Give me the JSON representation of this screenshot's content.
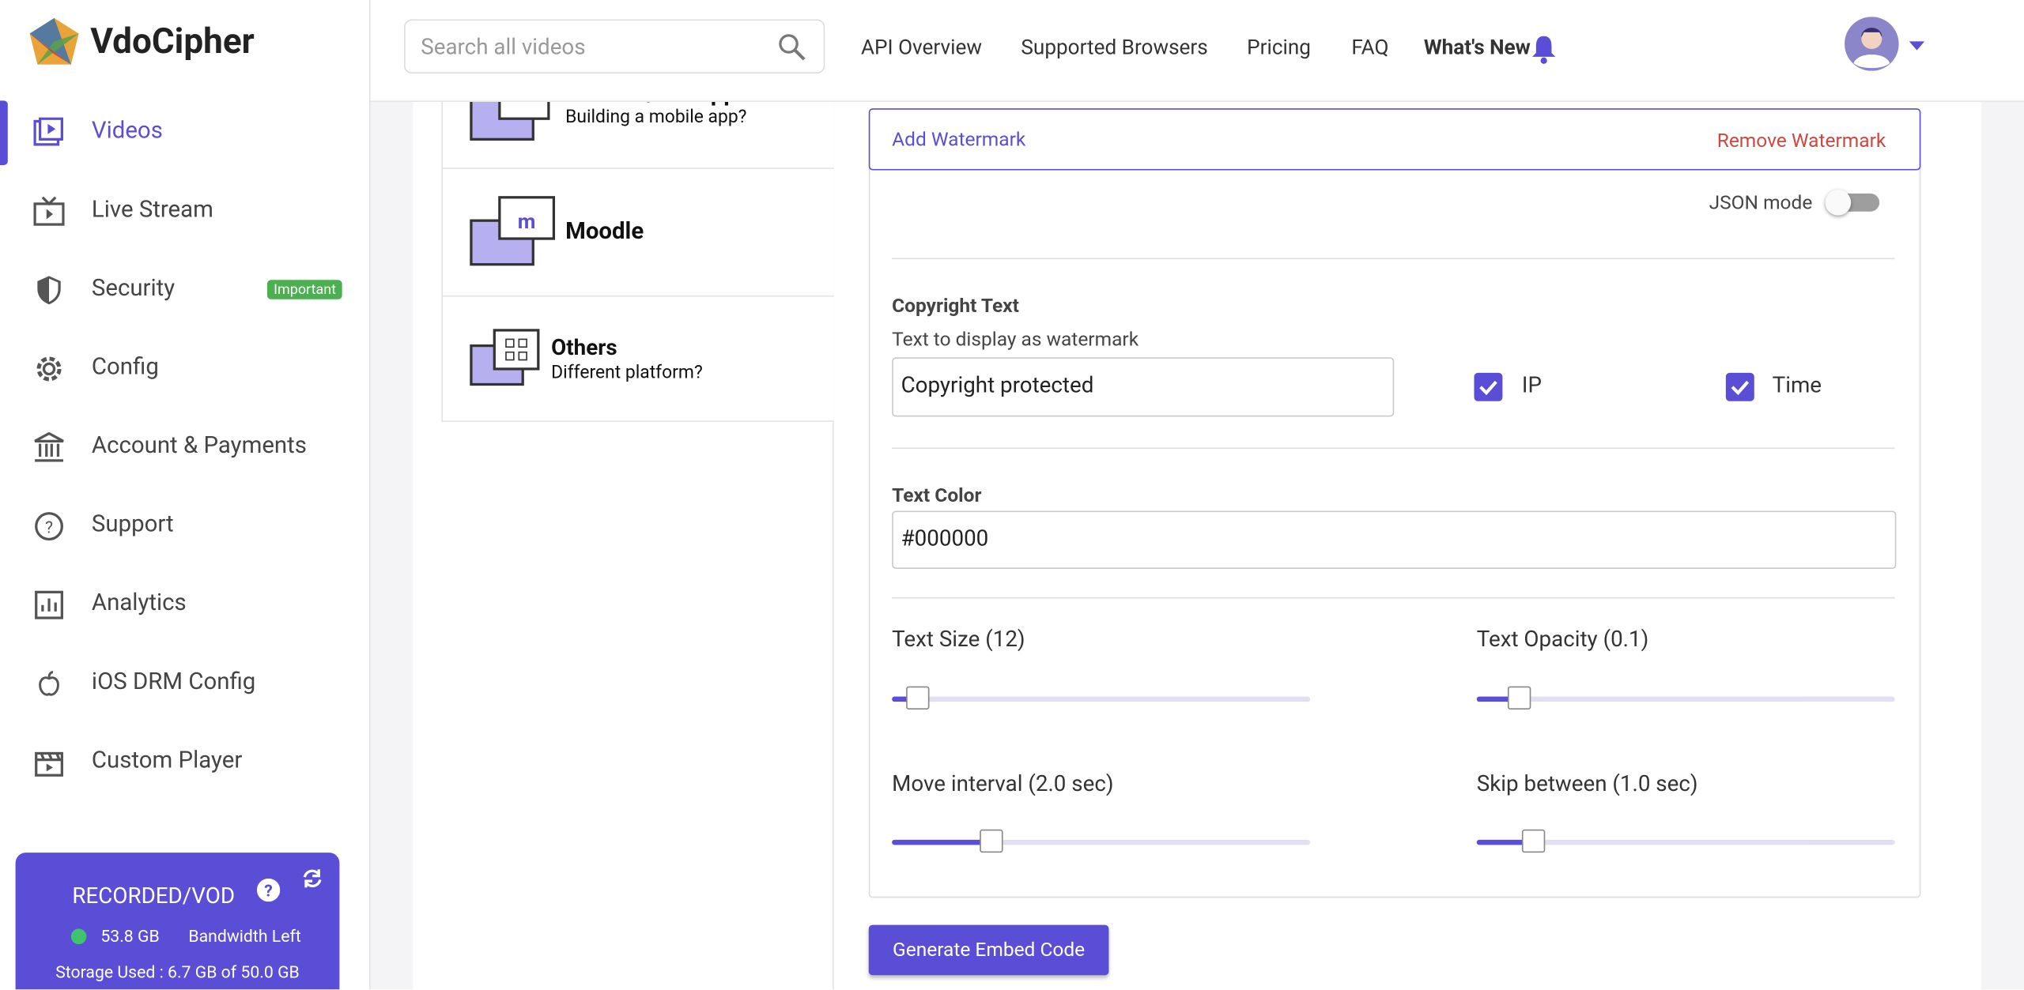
{
  "header": {
    "brand": "VdoCipher",
    "search_placeholder": "Search all videos",
    "nav": [
      "API Overview",
      "Supported Browsers",
      "Pricing",
      "FAQ",
      "What's New"
    ]
  },
  "sidebar": {
    "items": [
      "Videos",
      "Live Stream",
      "Security",
      "Config",
      "Account & Payments",
      "Support",
      "Analytics",
      "iOS DRM Config",
      "Custom Player"
    ],
    "badge": "Important",
    "plan": {
      "title": "RECORDED/VOD",
      "bandwidth": "53.8 GB",
      "bandwidth_label": "Bandwidth Left",
      "storage": "Storage Used : 6.7 GB of 50.0 GB"
    }
  },
  "platforms": [
    {
      "title": "Android/iOS apps",
      "subtitle": "Building a mobile app?"
    },
    {
      "title": "Moodle"
    },
    {
      "title": "Others",
      "subtitle": "Different platform?"
    }
  ],
  "watermark": {
    "add": "Add Watermark",
    "remove": "Remove Watermark",
    "json_mode": "JSON mode",
    "copyright_label": "Copyright Text",
    "copyright_help": "Text to display as watermark",
    "copyright_value": "Copyright protected",
    "ip": "IP",
    "time": "Time",
    "color_label": "Text Color",
    "color_value": "#000000",
    "sliders": [
      "Text Size (12)",
      "Text Opacity (0.1)",
      "Move interval (2.0 sec)",
      "Skip between (1.0 sec)"
    ],
    "button": "Generate Embed Code"
  }
}
